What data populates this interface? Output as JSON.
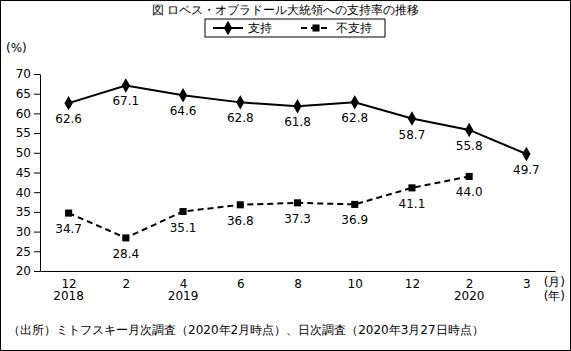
{
  "chart_data": {
    "type": "line",
    "title": "図 ロペス・オブラドール大統領への支持率の推移",
    "y_label": "(%)",
    "x_label": "(月)",
    "year_label": "(年)",
    "note": "（出所）ミトフスキー月次調査（2020年2月時点）、日次調査（2020年3月27日時点）",
    "categories": [
      "12",
      "2",
      "4",
      "6",
      "8",
      "10",
      "12",
      "2",
      "3"
    ],
    "years": [
      "2018",
      null,
      "2019",
      null,
      null,
      null,
      null,
      "2020",
      null
    ],
    "ylim": [
      20,
      70
    ],
    "yticks": [
      20,
      25,
      30,
      35,
      40,
      45,
      50,
      55,
      60,
      65,
      70
    ],
    "grid": false,
    "legend": "top",
    "data_labels": true,
    "series": [
      {
        "name": "支持",
        "color": "#000000",
        "marker": "diamond",
        "line_style": "solid",
        "values": [
          62.6,
          67.1,
          64.6,
          62.8,
          61.8,
          62.8,
          58.7,
          55.8,
          49.7
        ]
      },
      {
        "name": "不支持",
        "color": "#000000",
        "marker": "square",
        "line_style": "dashed",
        "values": [
          34.7,
          28.4,
          35.1,
          36.8,
          37.3,
          36.9,
          41.1,
          44.0,
          null
        ],
        "value_labels": [
          "34.7",
          "28.4",
          "35.1",
          "36.8",
          "37.3",
          "36.9",
          "41.1",
          "44.0",
          null
        ]
      }
    ]
  }
}
